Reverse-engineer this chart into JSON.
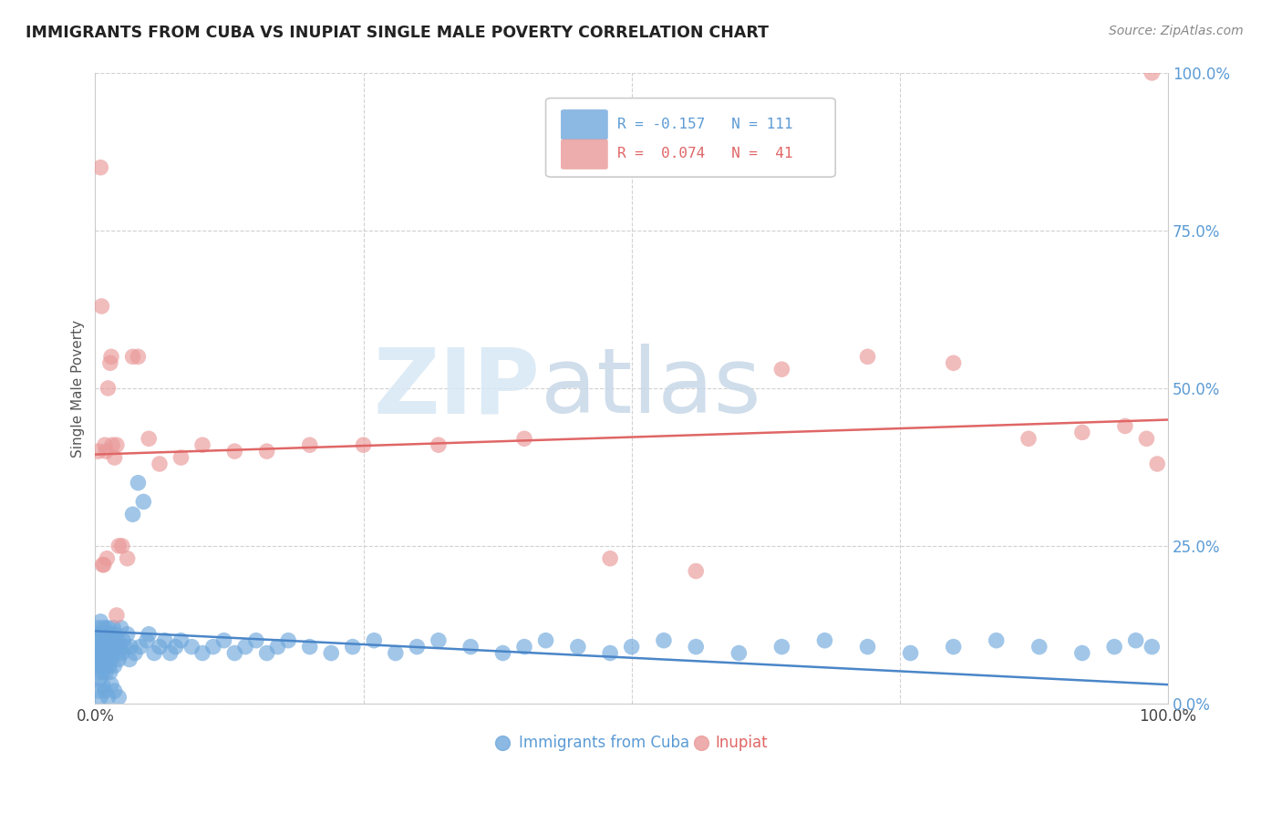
{
  "title": "IMMIGRANTS FROM CUBA VS INUPIAT SINGLE MALE POVERTY CORRELATION CHART",
  "source": "Source: ZipAtlas.com",
  "ylabel": "Single Male Poverty",
  "yticks": [
    "0.0%",
    "25.0%",
    "50.0%",
    "75.0%",
    "100.0%"
  ],
  "ytick_vals": [
    0.0,
    0.25,
    0.5,
    0.75,
    1.0
  ],
  "blue_color": "#6fa8dc",
  "pink_color": "#ea9999",
  "blue_line_color": "#4a86c8",
  "pink_line_color": "#e06666",
  "watermark_zip": "ZIP",
  "watermark_atlas": "atlas",
  "background_color": "#ffffff",
  "grid_color": "#cccccc",
  "blue_R": -0.157,
  "blue_N": 111,
  "pink_R": 0.074,
  "pink_N": 41,
  "blue_intercept": 0.115,
  "blue_slope": -0.085,
  "pink_intercept": 0.395,
  "pink_slope": 0.055,
  "blue_scatter_x": [
    0.001,
    0.002,
    0.002,
    0.003,
    0.003,
    0.003,
    0.004,
    0.004,
    0.004,
    0.005,
    0.005,
    0.005,
    0.006,
    0.006,
    0.006,
    0.007,
    0.007,
    0.008,
    0.008,
    0.008,
    0.009,
    0.009,
    0.01,
    0.01,
    0.01,
    0.011,
    0.011,
    0.012,
    0.012,
    0.013,
    0.013,
    0.014,
    0.014,
    0.015,
    0.015,
    0.016,
    0.016,
    0.017,
    0.018,
    0.018,
    0.019,
    0.02,
    0.021,
    0.022,
    0.023,
    0.024,
    0.025,
    0.026,
    0.028,
    0.03,
    0.032,
    0.033,
    0.035,
    0.037,
    0.04,
    0.042,
    0.045,
    0.048,
    0.05,
    0.055,
    0.06,
    0.065,
    0.07,
    0.075,
    0.08,
    0.09,
    0.1,
    0.11,
    0.12,
    0.13,
    0.14,
    0.15,
    0.16,
    0.17,
    0.18,
    0.2,
    0.22,
    0.24,
    0.26,
    0.28,
    0.3,
    0.32,
    0.35,
    0.38,
    0.4,
    0.42,
    0.45,
    0.48,
    0.5,
    0.53,
    0.56,
    0.6,
    0.64,
    0.68,
    0.72,
    0.76,
    0.8,
    0.84,
    0.88,
    0.92,
    0.95,
    0.97,
    0.985,
    0.003,
    0.005,
    0.007,
    0.009,
    0.012,
    0.015,
    0.018,
    0.022
  ],
  "blue_scatter_y": [
    0.08,
    0.1,
    0.05,
    0.09,
    0.12,
    0.06,
    0.07,
    0.11,
    0.04,
    0.08,
    0.13,
    0.06,
    0.09,
    0.07,
    0.11,
    0.08,
    0.05,
    0.1,
    0.07,
    0.12,
    0.06,
    0.09,
    0.08,
    0.11,
    0.05,
    0.1,
    0.07,
    0.09,
    0.12,
    0.06,
    0.08,
    0.11,
    0.05,
    0.09,
    0.07,
    0.1,
    0.08,
    0.12,
    0.06,
    0.09,
    0.11,
    0.08,
    0.1,
    0.07,
    0.09,
    0.12,
    0.08,
    0.1,
    0.09,
    0.11,
    0.07,
    0.09,
    0.3,
    0.08,
    0.35,
    0.09,
    0.32,
    0.1,
    0.11,
    0.08,
    0.09,
    0.1,
    0.08,
    0.09,
    0.1,
    0.09,
    0.08,
    0.09,
    0.1,
    0.08,
    0.09,
    0.1,
    0.08,
    0.09,
    0.1,
    0.09,
    0.08,
    0.09,
    0.1,
    0.08,
    0.09,
    0.1,
    0.09,
    0.08,
    0.09,
    0.1,
    0.09,
    0.08,
    0.09,
    0.1,
    0.09,
    0.08,
    0.09,
    0.1,
    0.09,
    0.08,
    0.09,
    0.1,
    0.09,
    0.08,
    0.09,
    0.1,
    0.09,
    0.02,
    0.01,
    0.03,
    0.02,
    0.01,
    0.03,
    0.02,
    0.01
  ],
  "pink_scatter_x": [
    0.003,
    0.005,
    0.006,
    0.007,
    0.008,
    0.009,
    0.01,
    0.011,
    0.012,
    0.014,
    0.015,
    0.016,
    0.018,
    0.02,
    0.022,
    0.025,
    0.03,
    0.035,
    0.04,
    0.05,
    0.06,
    0.08,
    0.1,
    0.13,
    0.16,
    0.2,
    0.25,
    0.32,
    0.4,
    0.48,
    0.56,
    0.64,
    0.72,
    0.8,
    0.87,
    0.92,
    0.96,
    0.98,
    0.99,
    0.02,
    0.985
  ],
  "pink_scatter_y": [
    0.4,
    0.85,
    0.63,
    0.22,
    0.22,
    0.41,
    0.4,
    0.23,
    0.5,
    0.54,
    0.55,
    0.41,
    0.39,
    0.41,
    0.25,
    0.25,
    0.23,
    0.55,
    0.55,
    0.42,
    0.38,
    0.39,
    0.41,
    0.4,
    0.4,
    0.41,
    0.41,
    0.41,
    0.42,
    0.23,
    0.21,
    0.53,
    0.55,
    0.54,
    0.42,
    0.43,
    0.44,
    0.42,
    0.38,
    0.14,
    1.0
  ]
}
